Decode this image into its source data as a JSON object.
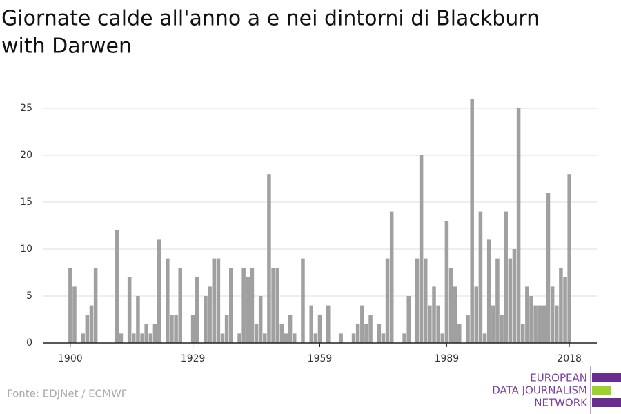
{
  "chart_data": {
    "type": "bar",
    "title": "Giornate calde all'anno a e nei dintorni di Blackburn with Darwen",
    "title_lines": [
      "Giornate calde all'anno a e nei dintorni di Blackburn",
      "with Darwen"
    ],
    "source": "Fonte: EDJNet / ECMWF",
    "logo": [
      "EUROPEAN",
      "DATA JOURNALISM",
      "NETWORK"
    ],
    "color": "#a0a0a0",
    "x": [
      1900,
      1901,
      1902,
      1903,
      1904,
      1905,
      1906,
      1907,
      1908,
      1909,
      1910,
      1911,
      1912,
      1913,
      1914,
      1915,
      1916,
      1917,
      1918,
      1919,
      1920,
      1921,
      1922,
      1923,
      1924,
      1925,
      1926,
      1927,
      1928,
      1929,
      1930,
      1931,
      1932,
      1933,
      1934,
      1935,
      1936,
      1937,
      1938,
      1939,
      1940,
      1941,
      1942,
      1943,
      1944,
      1945,
      1946,
      1947,
      1948,
      1949,
      1950,
      1951,
      1952,
      1953,
      1954,
      1955,
      1956,
      1957,
      1958,
      1959,
      1960,
      1961,
      1962,
      1963,
      1964,
      1965,
      1966,
      1967,
      1968,
      1969,
      1970,
      1971,
      1972,
      1973,
      1974,
      1975,
      1976,
      1977,
      1978,
      1979,
      1980,
      1981,
      1982,
      1983,
      1984,
      1985,
      1986,
      1987,
      1988,
      1989,
      1990,
      1991,
      1992,
      1993,
      1994,
      1995,
      1996,
      1997,
      1998,
      1999,
      2000,
      2001,
      2002,
      2003,
      2004,
      2005,
      2006,
      2007,
      2008,
      2009,
      2010,
      2011,
      2012,
      2013,
      2014,
      2015,
      2016,
      2017,
      2018
    ],
    "values": [
      8,
      6,
      0,
      1,
      3,
      4,
      8,
      0,
      0,
      0,
      0,
      12,
      1,
      0,
      7,
      1,
      5,
      1,
      2,
      1,
      2,
      11,
      0,
      9,
      3,
      3,
      8,
      0,
      0,
      3,
      7,
      0,
      5,
      6,
      9,
      9,
      1,
      3,
      8,
      0,
      1,
      8,
      7,
      8,
      2,
      5,
      1,
      18,
      8,
      8,
      2,
      1,
      3,
      1,
      0,
      9,
      0,
      4,
      1,
      3,
      0,
      4,
      0,
      0,
      1,
      0,
      0,
      1,
      2,
      4,
      2,
      3,
      0,
      2,
      1,
      9,
      14,
      0,
      0,
      1,
      5,
      0,
      9,
      20,
      9,
      4,
      6,
      4,
      1,
      13,
      8,
      6,
      2,
      0,
      3,
      26,
      6,
      14,
      1,
      11,
      4,
      9,
      3,
      14,
      9,
      10,
      25,
      2,
      6,
      5,
      4,
      4,
      4,
      16,
      6,
      4,
      8,
      7,
      18
    ],
    "xlim": [
      1893.5,
      2024.5
    ],
    "xticks": [
      1900,
      1929,
      1959,
      1989,
      2018
    ],
    "ylim": [
      0,
      26
    ],
    "yticks": [
      0,
      5,
      10,
      15,
      20,
      25
    ],
    "grid": true
  }
}
